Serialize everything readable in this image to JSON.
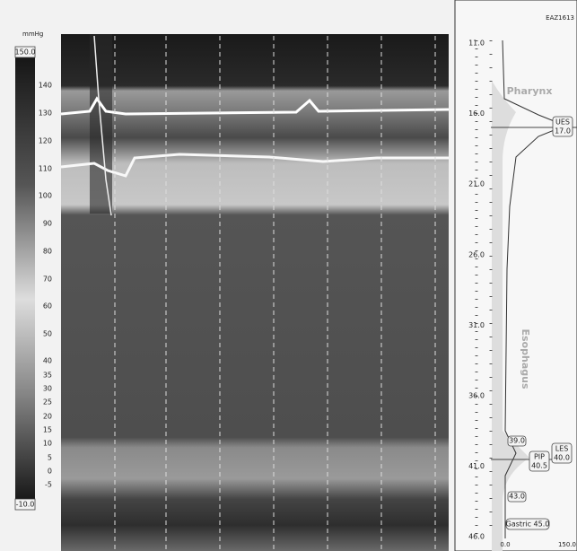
{
  "header": {
    "id": "EAZ1613"
  },
  "colorbar": {
    "unit": "mmHg",
    "max": "150.0",
    "min": "-10.0",
    "labels": [
      "140",
      "130",
      "120",
      "110",
      "100",
      "90",
      "80",
      "70",
      "60",
      "50",
      "40",
      "35",
      "30",
      "25",
      "20",
      "15",
      "10",
      "5",
      "0",
      "-5"
    ]
  },
  "depth_axis": {
    "labels": [
      "11.0",
      "16.0",
      "21.0",
      "26.0",
      "31.0",
      "36.0",
      "41.0",
      "46.0"
    ]
  },
  "regions": {
    "pharynx": "Pharynx",
    "esophagus": "Esophagus"
  },
  "markers": {
    "ues_label": "UES",
    "ues_value": "17.0",
    "les_top": "39.0",
    "pip_label": "PIP",
    "pip_value": "40.5",
    "les_label": "LES",
    "les_value": "40.0",
    "les_bottom": "43.0",
    "gastric": "Gastric 45.0"
  },
  "profile_axis": {
    "min": "0.0",
    "max": "150.0"
  }
}
